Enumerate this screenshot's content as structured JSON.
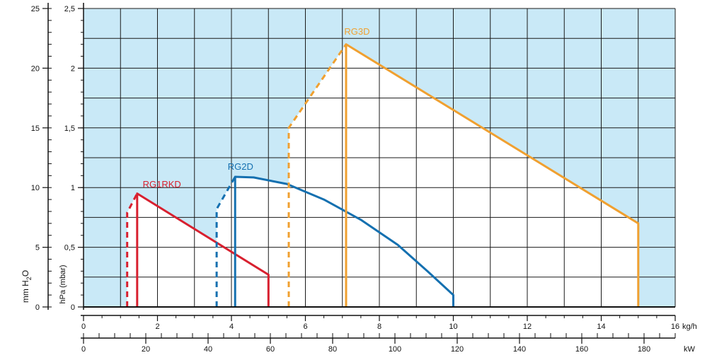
{
  "chart_data": {
    "type": "area",
    "x": {
      "label": "kg/h",
      "range": [
        0,
        16
      ],
      "ticks": [
        0,
        2,
        4,
        6,
        8,
        10,
        12,
        14,
        16
      ],
      "tick_labels": [
        "0",
        "2",
        "4",
        "6",
        "8",
        "10",
        "12",
        "14",
        "16"
      ]
    },
    "x2": {
      "label": "kW",
      "range": [
        0,
        190
      ],
      "ticks": [
        0,
        20,
        40,
        60,
        80,
        100,
        120,
        140,
        160,
        180
      ],
      "tick_labels": [
        "0",
        "20",
        "40",
        "60",
        "80",
        "100",
        "120",
        "140",
        "160",
        "180"
      ]
    },
    "y_right": {
      "label": "hPa (mbar)",
      "range": [
        0,
        2.5
      ],
      "ticks": [
        0,
        0.5,
        1,
        1.5,
        2,
        2.5
      ],
      "tick_labels": [
        "0",
        "0,5",
        "1",
        "1,5",
        "2",
        "2,5"
      ]
    },
    "y_left": {
      "label": "mm H2O",
      "range": [
        0,
        25
      ],
      "ticks": [
        0,
        5,
        10,
        15,
        20,
        25
      ],
      "tick_labels": [
        "0",
        "5",
        "10",
        "15",
        "20",
        "25"
      ]
    },
    "grid": true,
    "colors": {
      "background": "#c9e9f7",
      "grid": "#1a1a1a"
    },
    "series": [
      {
        "name": "RG1RKD",
        "color": "#d8202f",
        "dashed": [
          [
            1.18,
            0
          ],
          [
            1.18,
            0.79
          ],
          [
            1.45,
            0.95
          ]
        ],
        "solid": [
          [
            1.45,
            0
          ],
          [
            1.45,
            0.95
          ],
          [
            5,
            0.27
          ],
          [
            5,
            0
          ]
        ],
        "label_at": [
          1.6,
          1.0
        ]
      },
      {
        "name": "RG2D",
        "color": "#1470b0",
        "dashed": [
          [
            3.6,
            0
          ],
          [
            3.6,
            0.82
          ],
          [
            4.1,
            1.09
          ]
        ],
        "solid": [
          [
            4.1,
            0
          ],
          [
            4.1,
            1.09
          ],
          [
            4.6,
            1.085
          ],
          [
            5.5,
            1.03
          ],
          [
            6.5,
            0.9
          ],
          [
            7.5,
            0.73
          ],
          [
            8.5,
            0.52
          ],
          [
            9.3,
            0.3
          ],
          [
            10,
            0.1
          ],
          [
            10,
            0
          ]
        ],
        "label_at": [
          3.9,
          1.15
        ]
      },
      {
        "name": "RG3D",
        "color": "#f0a030",
        "dashed": [
          [
            5.55,
            0
          ],
          [
            5.55,
            1.5
          ],
          [
            7.1,
            2.2
          ]
        ],
        "solid": [
          [
            7.1,
            0
          ],
          [
            7.1,
            2.2
          ],
          [
            15,
            0.7
          ],
          [
            15,
            0
          ]
        ],
        "label_at": [
          7.05,
          2.28
        ]
      }
    ]
  }
}
